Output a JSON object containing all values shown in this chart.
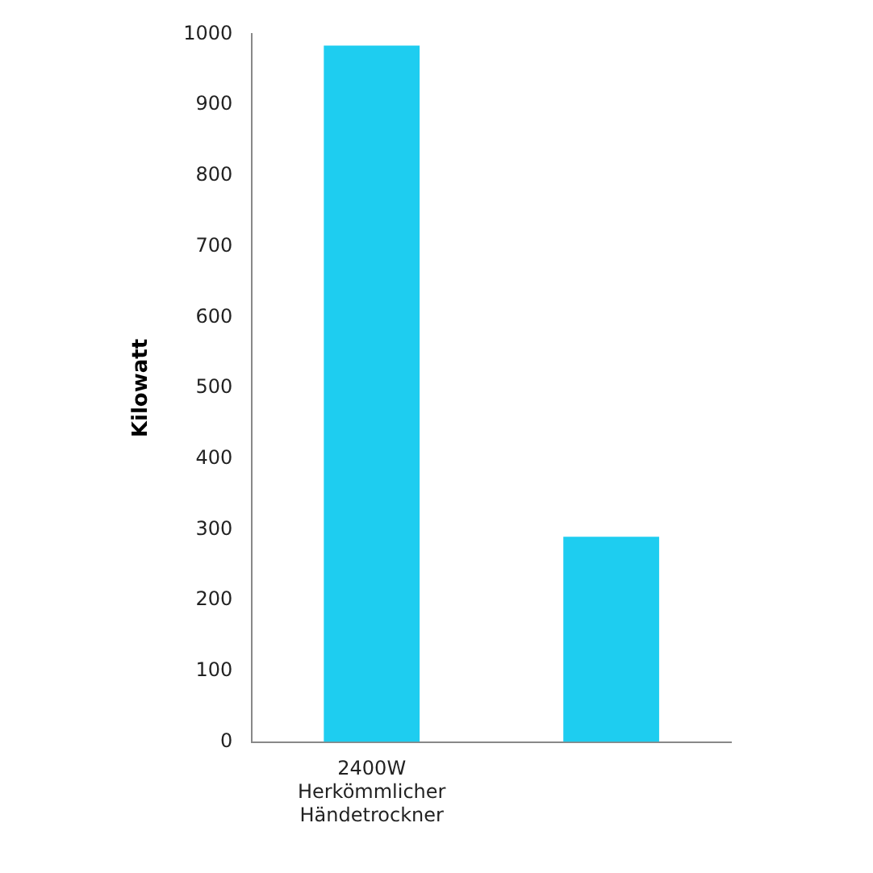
{
  "chart_data": {
    "type": "bar",
    "ylabel": "Kilowatt",
    "categories": [
      "2400W\nHerkömmlicher\nHändetrockner",
      null
    ],
    "values": [
      984,
      290
    ],
    "color": "#1ecdf0",
    "ylim": [
      0,
      1000
    ],
    "yticks": [
      0,
      100,
      200,
      300,
      400,
      500,
      600,
      700,
      800,
      900,
      1000
    ],
    "grid": false,
    "legend": false
  }
}
